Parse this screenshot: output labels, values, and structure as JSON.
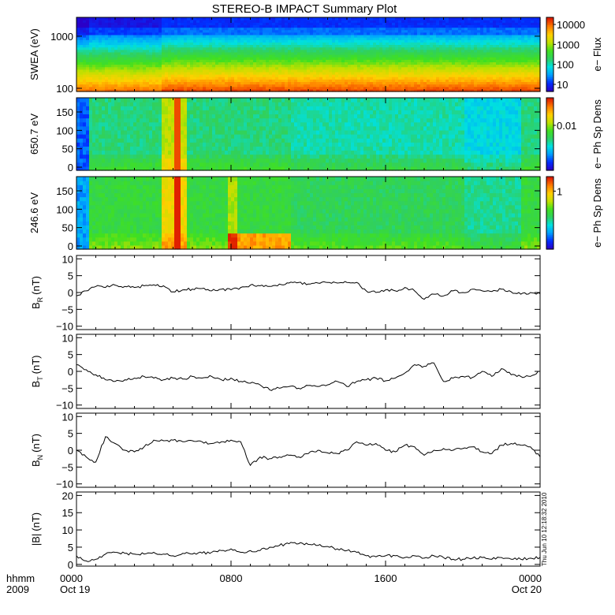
{
  "title": "STEREO-B IMPACT Summary Plot",
  "timestamp": "Thu Jun 10 12:18:32 2010",
  "colors": {
    "colormap": [
      "#2a00c8",
      "#0030ff",
      "#00a0ff",
      "#00e0e0",
      "#30d060",
      "#40e020",
      "#c0e000",
      "#ffd000",
      "#ff8000",
      "#e02000"
    ],
    "line": "#000000",
    "frame": "#000000"
  },
  "time_axis": {
    "corner_top": "hhmm",
    "corner_bottom": "2009",
    "ticks": [
      {
        "label": "0000",
        "sub": "Oct 19",
        "hour": 0
      },
      {
        "label": "0800",
        "sub": "",
        "hour": 8
      },
      {
        "label": "1600",
        "sub": "",
        "hour": 16
      },
      {
        "label": "0000",
        "sub": "Oct 20",
        "hour": 24
      }
    ],
    "range_hours": [
      0,
      24
    ]
  },
  "chart_data": [
    {
      "type": "heatmap",
      "ylabel": "SWEA (eV)",
      "yticks": [
        "100",
        "1000"
      ],
      "ylim": [
        100,
        2000
      ],
      "yscale": "log",
      "colorbar": {
        "label": "e− Flux",
        "ticks": [
          "10000",
          "1000",
          "100",
          "10"
        ],
        "scale": "log"
      },
      "description_of_values": "energy (eV) vs time: high flux at 100 eV, falling to low flux above ~1500 eV"
    },
    {
      "type": "heatmap",
      "ylabel": "650.7 eV",
      "yticks": [
        "0",
        "50",
        "100",
        "150"
      ],
      "ylim": [
        0,
        180
      ],
      "colorbar": {
        "label": "e− Ph Sp Dens",
        "ticks": [
          "0.01"
        ],
        "scale": "log"
      }
    },
    {
      "type": "heatmap",
      "ylabel": "246.6 eV",
      "yticks": [
        "0",
        "50",
        "100",
        "150"
      ],
      "ylim": [
        0,
        180
      ],
      "colorbar": {
        "label": "e− Ph Sp Dens",
        "ticks": [
          "1"
        ],
        "scale": "log"
      }
    },
    {
      "type": "line",
      "ylabel_main": "B",
      "ylabel_sub": "R",
      "ylabel_unit": "(nT)",
      "yticks": [
        "10",
        "5",
        "0",
        "−5",
        "−10"
      ],
      "ylim": [
        -11,
        11
      ],
      "x": [
        0,
        0.5,
        1,
        1.5,
        2,
        2.5,
        3,
        3.5,
        4,
        4.5,
        5,
        5.5,
        6,
        6.5,
        7,
        7.5,
        8,
        8.5,
        9,
        9.5,
        10,
        10.5,
        11,
        11.5,
        12,
        12.5,
        13,
        13.5,
        14,
        14.5,
        15,
        15.5,
        16,
        16.5,
        17,
        17.5,
        18,
        18.5,
        19,
        19.5,
        20,
        20.5,
        21,
        21.5,
        22,
        22.5,
        23,
        23.5,
        24
      ],
      "y": [
        -1,
        0.5,
        1.8,
        1.5,
        2.2,
        1.8,
        1.5,
        2,
        2.3,
        2,
        0.2,
        0.8,
        1,
        1.2,
        0.5,
        1,
        0.8,
        1.5,
        2.2,
        2,
        1.8,
        2.5,
        2.8,
        3,
        2.5,
        2.8,
        3,
        2.8,
        3,
        3,
        0.5,
        0,
        0.8,
        0.5,
        1.5,
        0.5,
        -2,
        -0.5,
        -1,
        0.5,
        0,
        1,
        0.5,
        0.3,
        1,
        0.2,
        -0.5,
        0,
        -0.3
      ]
    },
    {
      "type": "line",
      "ylabel_main": "B",
      "ylabel_sub": "T",
      "ylabel_unit": "(nT)",
      "yticks": [
        "10",
        "5",
        "0",
        "−5",
        "−10"
      ],
      "ylim": [
        -11,
        11
      ],
      "x": [
        0,
        0.5,
        1,
        1.5,
        2,
        2.5,
        3,
        3.5,
        4,
        4.5,
        5,
        5.5,
        6,
        6.5,
        7,
        7.5,
        8,
        8.5,
        9,
        9.5,
        10,
        10.5,
        11,
        11.5,
        12,
        12.5,
        13,
        13.5,
        14,
        14.5,
        15,
        15.5,
        16,
        16.5,
        17,
        17.5,
        18,
        18.5,
        19,
        19.5,
        20,
        20.5,
        21,
        21.5,
        22,
        22.5,
        23,
        23.5,
        24
      ],
      "y": [
        2,
        0.5,
        -1,
        -2.5,
        -3,
        -2.5,
        -2,
        -1.5,
        -2,
        -2.5,
        -2,
        -2.3,
        -1.5,
        -2,
        -1.5,
        -2.5,
        -2,
        -3,
        -3.5,
        -4,
        -5.5,
        -5,
        -4.5,
        -5,
        -4.2,
        -4.5,
        -4,
        -3,
        -4.5,
        -3,
        -2.5,
        -2,
        -2.8,
        -2,
        -0.5,
        2,
        1.5,
        2.5,
        -3,
        -2,
        -1.5,
        -1.8,
        0,
        -1.5,
        0.8,
        -1,
        -1.5,
        -1.5,
        0
      ]
    },
    {
      "type": "line",
      "ylabel_main": "B",
      "ylabel_sub": "N",
      "ylabel_unit": "(nT)",
      "yticks": [
        "10",
        "5",
        "0",
        "−5",
        "−10"
      ],
      "ylim": [
        -11,
        11
      ],
      "x": [
        0,
        0.5,
        1,
        1.5,
        2,
        2.5,
        3,
        3.5,
        4,
        4.5,
        5,
        5.5,
        6,
        6.5,
        7,
        7.5,
        8,
        8.5,
        9,
        9.5,
        10,
        10.5,
        11,
        11.5,
        12,
        12.5,
        13,
        13.5,
        14,
        14.5,
        15,
        15.5,
        16,
        16.5,
        17,
        17.5,
        18,
        18.5,
        19,
        19.5,
        20,
        20.5,
        21,
        21.5,
        22,
        22.5,
        23,
        23.5,
        24
      ],
      "y": [
        0,
        -2,
        -3.5,
        4,
        2,
        0,
        -0.5,
        1,
        3,
        2.8,
        3,
        2.5,
        2.8,
        2.5,
        2,
        2.5,
        3,
        2.5,
        -4.5,
        -2,
        -2.5,
        -2,
        -1.5,
        -2,
        -1,
        0,
        -0.8,
        -1,
        0,
        2.5,
        1.5,
        2,
        0,
        -0.5,
        1.5,
        1,
        -1.5,
        0,
        0.5,
        0,
        0.5,
        1,
        -0.5,
        -1,
        1.5,
        2,
        1.5,
        1,
        -2
      ]
    },
    {
      "type": "line",
      "ylabel_main": "|B|",
      "ylabel_sub": "",
      "ylabel_unit": "(nT)",
      "yticks": [
        "20",
        "15",
        "10",
        "5",
        "0"
      ],
      "ylim": [
        -0.5,
        21
      ],
      "x": [
        0,
        0.5,
        1,
        1.5,
        2,
        2.5,
        3,
        3.5,
        4,
        4.5,
        5,
        5.5,
        6,
        6.5,
        7,
        7.5,
        8,
        8.5,
        9,
        9.5,
        10,
        10.5,
        11,
        11.5,
        12,
        12.5,
        13,
        13.5,
        14,
        14.5,
        15,
        15.5,
        16,
        16.5,
        17,
        17.5,
        18,
        18.5,
        19,
        19.5,
        20,
        20.5,
        21,
        21.5,
        22,
        22.5,
        23,
        23.5,
        24
      ],
      "y": [
        2.5,
        1,
        1.5,
        3,
        3.5,
        3.2,
        3,
        3,
        3.5,
        3,
        2.5,
        3.2,
        3,
        3.3,
        3.5,
        4,
        4.5,
        3.5,
        4,
        4,
        5,
        5.5,
        6,
        6,
        5.8,
        5.5,
        5.2,
        4.5,
        4,
        3.5,
        2.5,
        2.2,
        2.5,
        2.5,
        2,
        2.5,
        1.8,
        2.5,
        2,
        1.5,
        1.5,
        1.8,
        2,
        1.5,
        2,
        1.5,
        1.5,
        1.8,
        2
      ]
    }
  ]
}
